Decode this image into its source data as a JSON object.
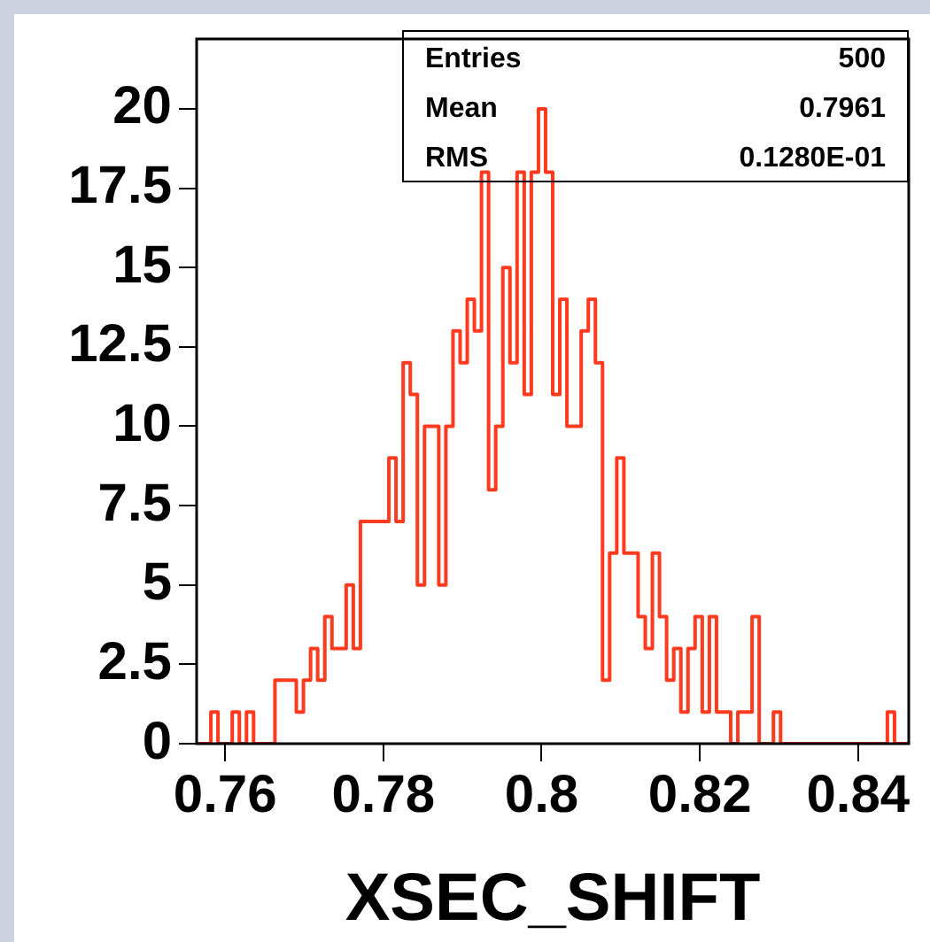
{
  "chart_data": {
    "type": "histogram",
    "xlabel": "XSEC_SHIFT",
    "annotations": [
      "Entries",
      "500",
      "Mean",
      "0.7961",
      "RMS",
      "0.1280E-01"
    ],
    "bins": [
      0.7564,
      0.7573,
      0.7582,
      0.7591,
      0.76,
      0.7609,
      0.7618,
      0.7627,
      0.7636,
      0.7645,
      0.7654,
      0.7663,
      0.7672,
      0.7681,
      0.769,
      0.7699,
      0.7708,
      0.7717,
      0.7726,
      0.7735,
      0.7744,
      0.7753,
      0.7762,
      0.7771,
      0.778,
      0.7789,
      0.7798,
      0.7807,
      0.7816,
      0.7825,
      0.7834,
      0.7843,
      0.7852,
      0.7861,
      0.787,
      0.7879,
      0.7888,
      0.7897,
      0.7906,
      0.7915,
      0.7924,
      0.7933,
      0.7942,
      0.7951,
      0.796,
      0.7969,
      0.7978,
      0.7987,
      0.7996,
      0.8005,
      0.8014,
      0.8023,
      0.8032,
      0.8041,
      0.805,
      0.8059,
      0.8068,
      0.8077,
      0.8086,
      0.8095,
      0.8104,
      0.8113,
      0.8122,
      0.8131,
      0.814,
      0.8149,
      0.8158,
      0.8167,
      0.8176,
      0.8185,
      0.8194,
      0.8203,
      0.8212,
      0.8221,
      0.823,
      0.8239,
      0.8248,
      0.8257,
      0.8266,
      0.8275,
      0.8284,
      0.8293,
      0.8302,
      0.8311,
      0.832,
      0.8329,
      0.8338,
      0.8347,
      0.8356,
      0.8365,
      0.8374,
      0.8383,
      0.8392,
      0.8401,
      0.841,
      0.8419,
      0.8428,
      0.8437,
      0.8446,
      0.8455,
      0.8464
    ],
    "values": [
      0,
      0,
      1,
      0,
      0,
      1,
      0,
      1,
      0,
      0,
      0,
      2,
      2,
      2,
      1,
      2,
      3,
      2,
      4,
      3,
      3,
      5,
      3,
      7,
      7,
      7,
      7,
      9,
      7,
      12,
      11,
      5,
      10,
      10,
      5,
      10,
      13,
      12,
      14,
      13,
      18,
      8,
      10,
      15,
      12,
      18,
      11,
      18,
      20,
      18,
      11,
      14,
      10,
      10,
      13,
      14,
      12,
      2,
      6,
      9,
      6,
      6,
      4,
      3,
      6,
      4,
      2,
      3,
      1,
      3,
      4,
      1,
      4,
      1,
      1,
      0,
      1,
      1,
      4,
      0,
      0,
      1,
      0,
      0,
      0,
      0,
      0,
      0,
      0,
      0,
      0,
      0,
      0,
      0,
      0,
      0,
      0,
      1,
      0,
      0
    ],
    "color": "#ff3a1e",
    "xlim": [
      0.7564,
      0.8464
    ],
    "xticks": [
      0.76,
      0.78,
      0.8,
      0.82,
      0.84
    ],
    "ylim": [
      0,
      22.2
    ],
    "yticks": [
      0,
      2.5,
      5,
      7.5,
      10,
      12.5,
      15,
      17.5,
      20
    ]
  }
}
